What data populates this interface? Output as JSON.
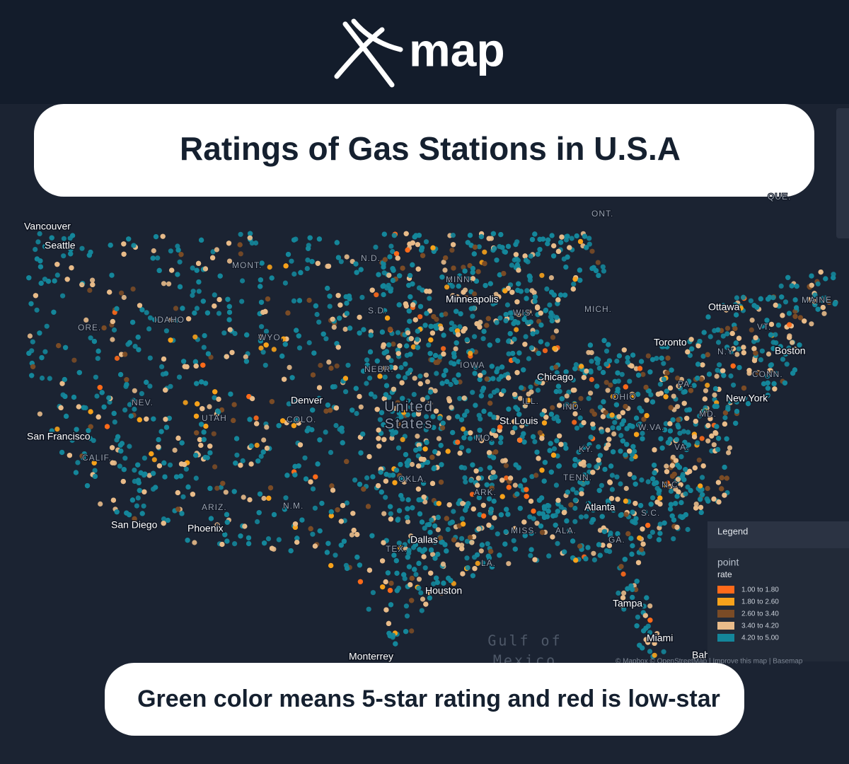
{
  "header": {
    "logo": "map"
  },
  "title": "Ratings of Gas Stations in U.S.A",
  "caption": "Green color means 5-star rating and red is low-star",
  "map": {
    "cities": [
      "Vancouver",
      "Seattle",
      "San Francisco",
      "San Diego",
      "Phoenix",
      "Denver",
      "Minneapolis",
      "Chicago",
      "St. Louis",
      "Dallas",
      "Houston",
      "Monterrey",
      "Atlanta",
      "Tampa",
      "Miami",
      "Bahamas",
      "Ottawa",
      "Toronto",
      "Boston",
      "New York"
    ],
    "regions": [
      "ONT.",
      "QUE.",
      "MONT.",
      "IDAHO",
      "ORE.",
      "WYO.",
      "NEV.",
      "UTAH",
      "COLO.",
      "CALIF.",
      "ARIZ.",
      "N.M.",
      "N.D.",
      "S.D.",
      "NEBR.",
      "MINN.",
      "WIS.",
      "IOWA",
      "MICH.",
      "ILL.",
      "IND.",
      "OHIO",
      "MO.",
      "KY.",
      "OKLA.",
      "ARK.",
      "TENN.",
      "TEX.",
      "LA.",
      "MISS.",
      "ALA.",
      "GA.",
      "S.C.",
      "N.C.",
      "VA.",
      "W.VA.",
      "PA.",
      "MD.",
      "N.Y.",
      "VT.",
      "MAINE",
      "CONN."
    ],
    "country": [
      "United",
      "States"
    ],
    "water": [
      "Gulf of",
      "Mexico"
    ],
    "attribution": "© Mapbox © OpenStreetMap | Improve this map | Basemap"
  },
  "legend": {
    "title": "Legend",
    "layer": "point",
    "field": "rate",
    "items": [
      {
        "label": "1.00 to 1.80",
        "color": "#ff6a1a"
      },
      {
        "label": "1.80 to 2.60",
        "color": "#f7a21b"
      },
      {
        "label": "2.60 to 3.40",
        "color": "#7a4b26"
      },
      {
        "label": "3.40 to 4.20",
        "color": "#e8bb8a"
      },
      {
        "label": "4.20 to 5.00",
        "color": "#14869a"
      }
    ]
  }
}
